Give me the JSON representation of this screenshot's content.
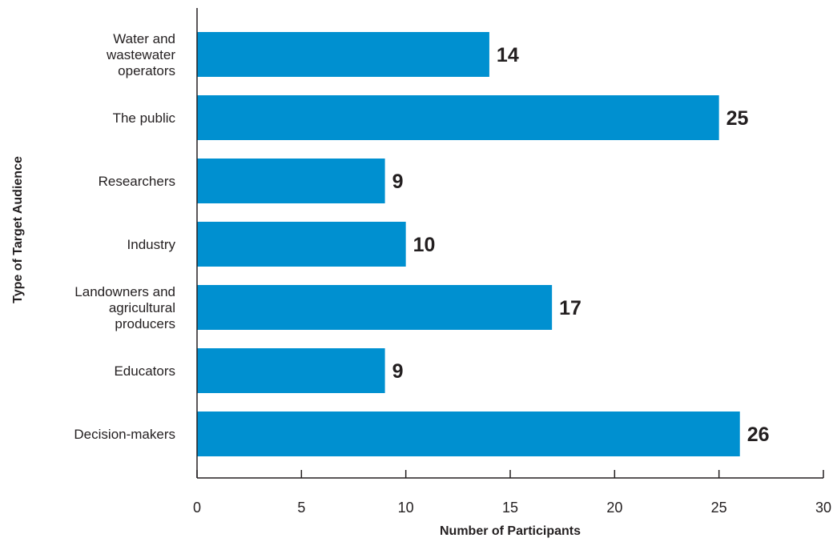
{
  "chart_data": {
    "type": "bar",
    "orientation": "horizontal",
    "categories": [
      "Water and wastewater operators",
      "The public",
      "Researchers",
      "Industry",
      "Landowners and agricultural producers",
      "Educators",
      "Decision-makers"
    ],
    "category_lines": [
      [
        "Water and",
        "wastewater",
        "operators"
      ],
      [
        "The public"
      ],
      [
        "Researchers"
      ],
      [
        "Industry"
      ],
      [
        "Landowners and",
        "agricultural",
        "producers"
      ],
      [
        "Educators"
      ],
      [
        "Decision-makers"
      ]
    ],
    "values": [
      14,
      25,
      9,
      10,
      17,
      9,
      26
    ],
    "xlabel": "Number of Participants",
    "ylabel": "Type of Target Audience",
    "xlim": [
      0,
      30
    ],
    "xticks": [
      0,
      5,
      10,
      15,
      20,
      25,
      30
    ],
    "bar_color": "#0090d0",
    "grid": false,
    "legend": "none"
  }
}
